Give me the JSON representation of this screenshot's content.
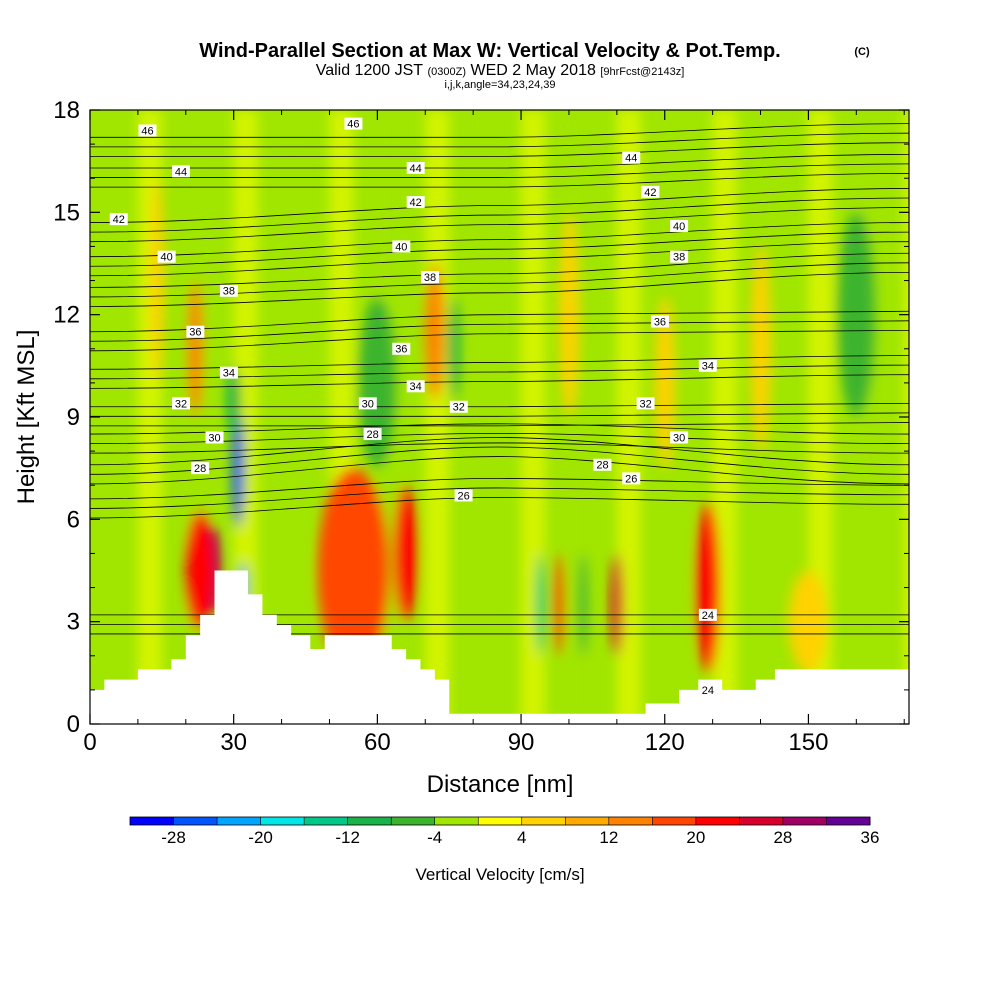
{
  "header": {
    "title": "Wind-Parallel Section at Max W: Vertical Velocity & Pot.Temp.",
    "title_mark": "(C)",
    "valid_prefix": "Valid 1200 JST",
    "valid_utc": "(0300Z)",
    "valid_date": "WED 2 May 2018",
    "valid_fcst": "[9hrFcst@2143z]",
    "grid_info": "i,j,k,angle=34,23,24,39"
  },
  "chart_data": {
    "type": "heatmap",
    "xlabel": "Distance [nm]",
    "ylabel": "Height [Kft MSL]",
    "xlim": [
      0,
      171
    ],
    "ylim": [
      0,
      18
    ],
    "x_ticks": [
      "0",
      "30",
      "60",
      "90",
      "120",
      "150"
    ],
    "x_tick_values": [
      0,
      30,
      60,
      90,
      120,
      150
    ],
    "y_ticks": [
      "0",
      "3",
      "6",
      "9",
      "12",
      "15",
      "18"
    ],
    "y_tick_values": [
      0,
      3,
      6,
      9,
      12,
      15,
      18
    ],
    "terrain": [
      [
        0,
        1
      ],
      [
        3,
        1
      ],
      [
        3,
        1.3
      ],
      [
        10,
        1.3
      ],
      [
        10,
        1.6
      ],
      [
        17,
        1.6
      ],
      [
        17,
        1.9
      ],
      [
        20,
        1.9
      ],
      [
        20,
        2.6
      ],
      [
        23,
        2.6
      ],
      [
        23,
        3.2
      ],
      [
        26,
        3.2
      ],
      [
        26,
        3.6
      ],
      [
        26,
        3.6
      ],
      [
        26,
        4.5
      ],
      [
        33,
        4.5
      ],
      [
        33,
        3.8
      ],
      [
        36,
        3.8
      ],
      [
        36,
        3.2
      ],
      [
        39,
        3.2
      ],
      [
        39,
        2.9
      ],
      [
        42,
        2.9
      ],
      [
        42,
        2.6
      ],
      [
        46,
        2.6
      ],
      [
        46,
        2.2
      ],
      [
        49,
        2.2
      ],
      [
        49,
        2.6
      ],
      [
        63,
        2.6
      ],
      [
        63,
        2.2
      ],
      [
        66,
        2.2
      ],
      [
        66,
        1.9
      ],
      [
        69,
        1.9
      ],
      [
        69,
        1.6
      ],
      [
        72,
        1.6
      ],
      [
        72,
        1.3
      ],
      [
        75,
        1.3
      ],
      [
        75,
        0.3
      ],
      [
        116,
        0.3
      ],
      [
        116,
        0.6
      ],
      [
        123,
        0.6
      ],
      [
        123,
        1.0
      ],
      [
        127,
        1.0
      ],
      [
        127,
        1.3
      ],
      [
        132,
        1.3
      ],
      [
        132,
        1.0
      ],
      [
        139,
        1.0
      ],
      [
        139,
        1.3
      ],
      [
        143,
        1.3
      ],
      [
        143,
        1.6
      ],
      [
        171,
        1.6
      ]
    ],
    "velocity_cells": [
      {
        "x": 31,
        "y": 7.5,
        "v": -26,
        "w": 2.5,
        "h": 3.5
      },
      {
        "x": 32,
        "y": 4,
        "v": -24,
        "w": 2,
        "h": 1.5
      },
      {
        "x": 30,
        "y": 9.5,
        "v": -12,
        "w": 3,
        "h": 2
      },
      {
        "x": 26,
        "y": 4.5,
        "v": 28,
        "w": 3,
        "h": 2.5
      },
      {
        "x": 23,
        "y": 4.5,
        "v": 20,
        "w": 6,
        "h": 3.5
      },
      {
        "x": 22,
        "y": 11,
        "v": 12,
        "w": 3,
        "h": 4
      },
      {
        "x": 14,
        "y": 13,
        "v": 4,
        "w": 3,
        "h": 6
      },
      {
        "x": 55,
        "y": 4.5,
        "v": 16,
        "w": 15,
        "h": 6
      },
      {
        "x": 66,
        "y": 5,
        "v": 22,
        "w": 5,
        "h": 4
      },
      {
        "x": 72,
        "y": 11.5,
        "v": 14,
        "w": 4,
        "h": 4
      },
      {
        "x": 76,
        "y": 11,
        "v": -12,
        "w": 2.5,
        "h": 3
      },
      {
        "x": 60,
        "y": 10,
        "v": -8,
        "w": 8,
        "h": 5
      },
      {
        "x": 94,
        "y": 3.5,
        "v": -14,
        "w": 2,
        "h": 3
      },
      {
        "x": 98,
        "y": 3.5,
        "v": 18,
        "w": 2,
        "h": 3
      },
      {
        "x": 103,
        "y": 3.5,
        "v": -8,
        "w": 2,
        "h": 3
      },
      {
        "x": 110,
        "y": 3.5,
        "v": 26,
        "w": 2.5,
        "h": 3
      },
      {
        "x": 130,
        "y": 4,
        "v": 36,
        "w": 2.5,
        "h": 3.5
      },
      {
        "x": 129,
        "y": 4,
        "v": 20,
        "w": 5,
        "h": 5
      },
      {
        "x": 100,
        "y": 12,
        "v": 6,
        "w": 4,
        "h": 6
      },
      {
        "x": 120,
        "y": 10,
        "v": 6,
        "w": 4,
        "h": 5
      },
      {
        "x": 140,
        "y": 11,
        "v": 6,
        "w": 4,
        "h": 6
      },
      {
        "x": 160,
        "y": 12,
        "v": -8,
        "w": 8,
        "h": 6
      },
      {
        "x": 150,
        "y": 3,
        "v": 6,
        "w": 8,
        "h": 3
      }
    ],
    "theta_contours": [
      {
        "label": "46",
        "y0": 17.2,
        "y_mid": 17.2,
        "y1": 17.6
      },
      {
        "label": "44",
        "y0": 16.3,
        "y_mid": 16.3,
        "y1": 16.7
      },
      {
        "label": "42",
        "y0": 14.7,
        "y_mid": 15.2,
        "y1": 15.7
      },
      {
        "label": "40",
        "y0": 13.7,
        "y_mid": 14.2,
        "y1": 14.7
      },
      {
        "label": "38",
        "y0": 12.8,
        "y_mid": 13.2,
        "y1": 13.8
      },
      {
        "label": "36",
        "y0": 11.5,
        "y_mid": 12,
        "y1": 12.1
      },
      {
        "label": "34",
        "y0": 10.4,
        "y_mid": 10.6,
        "y1": 10.8
      },
      {
        "label": "32",
        "y0": 9.3,
        "y_mid": 9.3,
        "y1": 9.4
      },
      {
        "label": "30",
        "y0": 8.5,
        "y_mid": 8.8,
        "y1": 8.5
      },
      {
        "label": "28",
        "y0": 7.6,
        "y_mid": 8.4,
        "y1": 7.6
      },
      {
        "label": "26",
        "y0": 6.6,
        "y_mid": 7.2,
        "y1": 7.0
      },
      {
        "label": "24",
        "y0": 3.2,
        "y_mid": 3.2,
        "y1": 3.2
      }
    ],
    "contour_labels": [
      {
        "text": "46",
        "x": 12,
        "y": 17.4
      },
      {
        "text": "44",
        "x": 19,
        "y": 16.2
      },
      {
        "text": "42",
        "x": 6,
        "y": 14.8
      },
      {
        "text": "40",
        "x": 16,
        "y": 13.7
      },
      {
        "text": "38",
        "x": 29,
        "y": 12.7
      },
      {
        "text": "36",
        "x": 22,
        "y": 11.5
      },
      {
        "text": "34",
        "x": 29,
        "y": 10.3
      },
      {
        "text": "32",
        "x": 19,
        "y": 9.4
      },
      {
        "text": "30",
        "x": 26,
        "y": 8.4
      },
      {
        "text": "28",
        "x": 23,
        "y": 7.5
      },
      {
        "text": "46",
        "x": 55,
        "y": 17.6
      },
      {
        "text": "44",
        "x": 68,
        "y": 16.3
      },
      {
        "text": "42",
        "x": 68,
        "y": 15.3
      },
      {
        "text": "40",
        "x": 65,
        "y": 14.0
      },
      {
        "text": "38",
        "x": 71,
        "y": 13.1
      },
      {
        "text": "36",
        "x": 65,
        "y": 11.0
      },
      {
        "text": "34",
        "x": 68,
        "y": 9.9
      },
      {
        "text": "32",
        "x": 77,
        "y": 9.3
      },
      {
        "text": "30",
        "x": 58,
        "y": 9.4
      },
      {
        "text": "28",
        "x": 59,
        "y": 8.5
      },
      {
        "text": "26",
        "x": 78,
        "y": 6.7
      },
      {
        "text": "44",
        "x": 113,
        "y": 16.6
      },
      {
        "text": "42",
        "x": 117,
        "y": 15.6
      },
      {
        "text": "40",
        "x": 123,
        "y": 14.6
      },
      {
        "text": "38",
        "x": 123,
        "y": 13.7
      },
      {
        "text": "36",
        "x": 119,
        "y": 11.8
      },
      {
        "text": "34",
        "x": 129,
        "y": 10.5
      },
      {
        "text": "32",
        "x": 116,
        "y": 9.4
      },
      {
        "text": "30",
        "x": 123,
        "y": 8.4
      },
      {
        "text": "28",
        "x": 107,
        "y": 7.6
      },
      {
        "text": "26",
        "x": 113,
        "y": 7.2
      },
      {
        "text": "24",
        "x": 129,
        "y": 3.2
      },
      {
        "text": "24",
        "x": 129,
        "y": 1.0
      }
    ]
  },
  "colorbar": {
    "title": "Vertical Velocity [cm/s]",
    "labels": [
      "-28",
      "-20",
      "-12",
      "-4",
      "4",
      "12",
      "20",
      "28",
      "36"
    ],
    "label_values": [
      -28,
      -20,
      -12,
      -4,
      4,
      12,
      20,
      28,
      36
    ],
    "colors": [
      "#0000ff",
      "#0055ff",
      "#00a5ff",
      "#00e5e5",
      "#00c887",
      "#19b24b",
      "#3cb42d",
      "#a0e600",
      "#ffff00",
      "#ffd200",
      "#ffaa00",
      "#ff8200",
      "#ff4600",
      "#ff0000",
      "#d7002d",
      "#a00064",
      "#640096"
    ],
    "min": -32,
    "max": 36
  }
}
